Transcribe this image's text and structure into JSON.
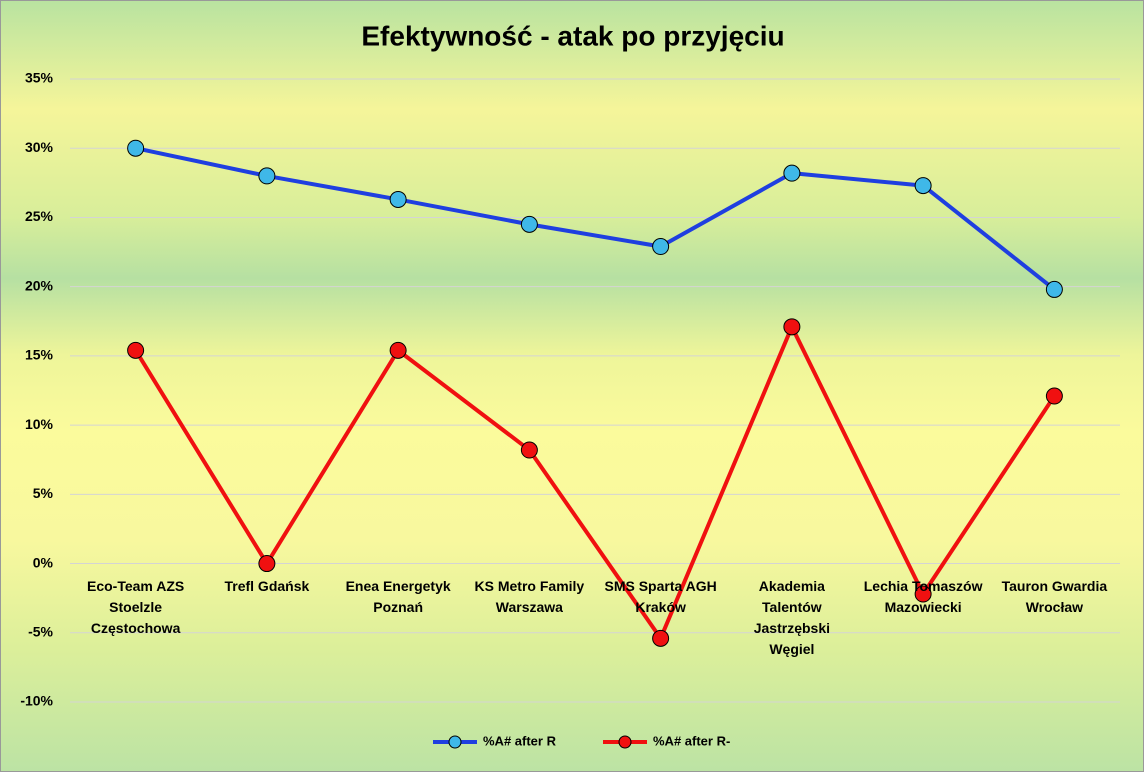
{
  "chart_data": {
    "type": "line",
    "title": "Efektywność - atak po przyjęciu",
    "categories": [
      "Eco-Team AZS Stoelzle Częstochowa",
      "Trefl Gdańsk",
      "Enea Energetyk Poznań",
      "KS Metro Family Warszawa",
      "SMS Sparta AGH Kraków",
      "Akademia Talentów Jastrzębski Węgiel",
      "Lechia Tomaszów Mazowiecki",
      "Tauron Gwardia Wrocław"
    ],
    "series": [
      {
        "name": "%A# after R",
        "color": "#1f3fe0",
        "marker_color": "#3fb8e8",
        "values": [
          30,
          28,
          26.3,
          24.5,
          22.9,
          28.2,
          27.3,
          19.8
        ]
      },
      {
        "name": "%A# after R-",
        "color": "#f01010",
        "marker_color": "#f01010",
        "values": [
          15.4,
          0,
          15.4,
          8.2,
          -5.4,
          17.1,
          -2.2,
          12.1
        ]
      }
    ],
    "ylim": [
      -10,
      35
    ],
    "yticks": [
      {
        "value": -10,
        "label": "-10%"
      },
      {
        "value": -5,
        "label": "-5%"
      },
      {
        "value": 0,
        "label": "0%"
      },
      {
        "value": 5,
        "label": "5%"
      },
      {
        "value": 10,
        "label": "10%"
      },
      {
        "value": 15,
        "label": "15%"
      },
      {
        "value": 20,
        "label": "20%"
      },
      {
        "value": 25,
        "label": "25%"
      },
      {
        "value": 30,
        "label": "30%"
      },
      {
        "value": 35,
        "label": "35%"
      }
    ],
    "grid": true,
    "legend": "bottom"
  }
}
